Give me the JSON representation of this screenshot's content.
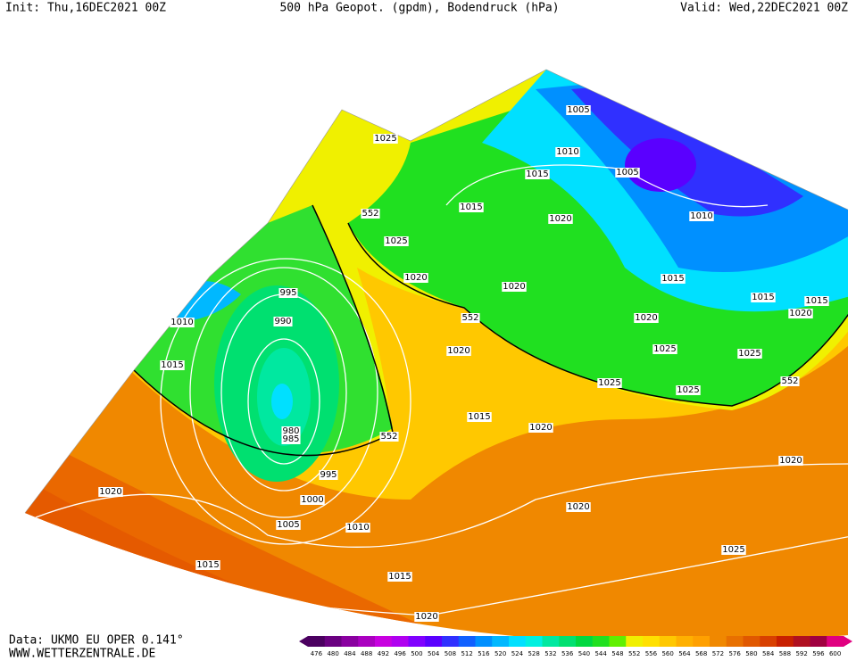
{
  "header": {
    "init": "Init: Thu,16DEC2021 00Z",
    "title": "500 hPa Geopot. (gpdm), Bodendruck (hPa)",
    "valid": "Valid: Wed,22DEC2021 00Z"
  },
  "isobar_labels": [
    "1005",
    "1025",
    "1010",
    "1005",
    "1015",
    "552",
    "1015",
    "1020",
    "1010",
    "1025",
    "1020",
    "1020",
    "1015",
    "1015",
    "1015",
    "995",
    "1020",
    "552",
    "990",
    "1010",
    "1020",
    "1025",
    "1020",
    "1025",
    "1015",
    "552",
    "1025",
    "1025",
    "1015",
    "1020",
    "980",
    "985",
    "552",
    "1020",
    "995",
    "1000",
    "1020",
    "1020",
    "1005",
    "1010",
    "1025",
    "1015",
    "1015",
    "1020"
  ],
  "legend": {
    "labels": [
      "476",
      "480",
      "484",
      "488",
      "492",
      "496",
      "500",
      "504",
      "508",
      "512",
      "516",
      "520",
      "524",
      "528",
      "532",
      "536",
      "540",
      "544",
      "548",
      "552",
      "556",
      "560",
      "564",
      "568",
      "572",
      "576",
      "580",
      "584",
      "588",
      "592",
      "596",
      "600"
    ],
    "colors": [
      "#4b0060",
      "#6a0080",
      "#8a00a0",
      "#aa00c0",
      "#c800e0",
      "#b000f0",
      "#8000ff",
      "#5a00ff",
      "#3030ff",
      "#1060ff",
      "#0090ff",
      "#00b8ff",
      "#00e0ff",
      "#00f0e0",
      "#00e8a0",
      "#00e070",
      "#00d840",
      "#20e020",
      "#60f000",
      "#f0f000",
      "#ffe000",
      "#ffc800",
      "#ffb000",
      "#ffa000",
      "#f08800",
      "#e87000",
      "#e05800",
      "#d84000",
      "#c82000",
      "#b01020",
      "#a00040",
      "#e00080"
    ]
  },
  "footer": {
    "source": "Data: UKMO EU OPER 0.141°",
    "site": "WWW.WETTERZENTRALE.DE"
  }
}
